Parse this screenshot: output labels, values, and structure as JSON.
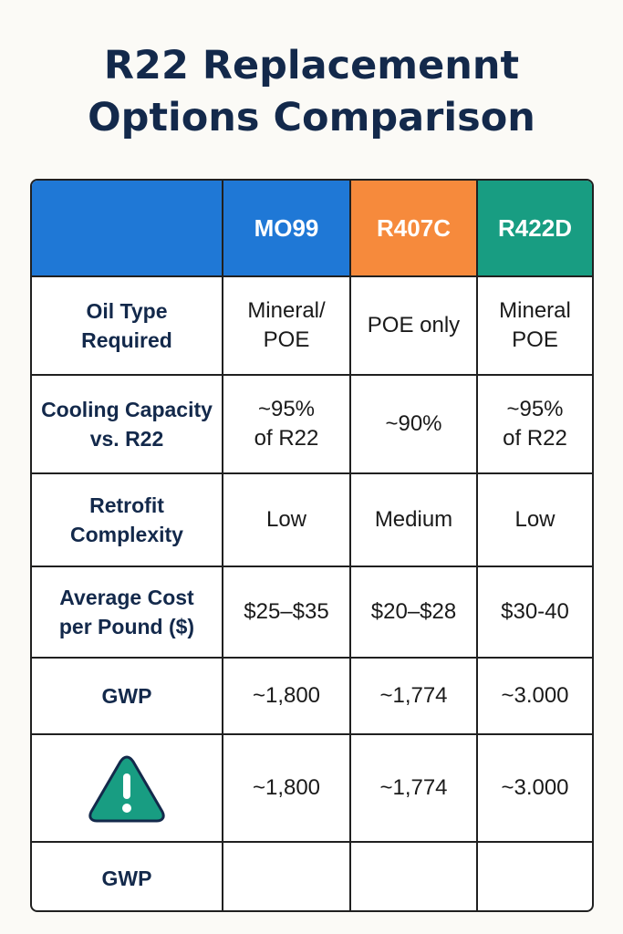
{
  "title_line1": "R22 Replacemennt",
  "title_line2": "Options Comparison",
  "colors": {
    "MO99": "#1f78d6",
    "R407C": "#f68a3c",
    "R422D": "#189d82",
    "title": "#13294b"
  },
  "columns": [
    "",
    "MO99",
    "R407C",
    "R422D"
  ],
  "rows": [
    {
      "label": "Oil Type\nRequired",
      "values": [
        "Mineral/\nPOE",
        "POE only",
        "Mineral\nPOE"
      ]
    },
    {
      "label": "Cooling Capacity\nvs. R22",
      "values": [
        "~95%\nof R22",
        "~90%",
        "~95%\nof R22"
      ]
    },
    {
      "label": "Retrofit\nComplexity",
      "values": [
        "Low",
        "Medium",
        "Low"
      ]
    },
    {
      "label": "Average Cost\nper Pound ($)",
      "values": [
        "$25–$35",
        "$20–$28",
        "$30-40"
      ]
    },
    {
      "label": "GWP",
      "values": [
        "~1,800",
        "~1,774",
        "~3.000"
      ]
    },
    {
      "label_icon": "warning-triangle-icon",
      "values": [
        "~1,800",
        "~1,774",
        "~3.000"
      ]
    },
    {
      "label": "GWP",
      "values": [
        "",
        "",
        ""
      ]
    }
  ]
}
